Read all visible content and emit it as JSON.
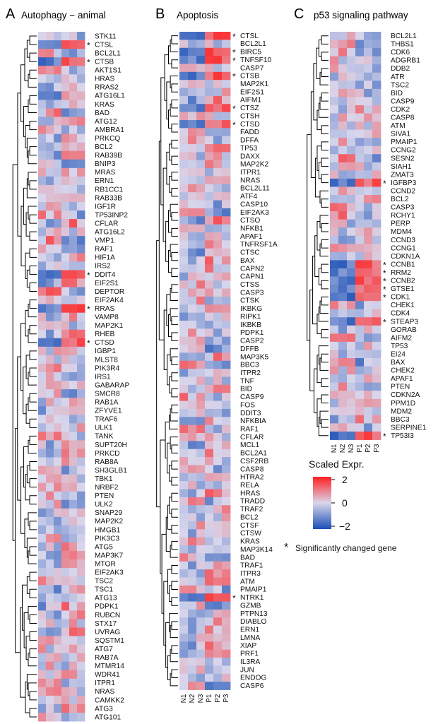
{
  "figure": {
    "legend_title": "Scaled Expr.",
    "legend_ticks": [
      "2",
      "0",
      "−2"
    ],
    "significance_note": "Significantly changed gene",
    "star": "*",
    "colors": {
      "low": "#1a4fb5",
      "mid": "#d8d6ec",
      "high": "#ff1f1f"
    }
  },
  "chart_data": [
    {
      "type": "heatmap",
      "panel": "A",
      "title": "Autophagy − animal",
      "samples": [
        "N1",
        "N2",
        "N3",
        "P1",
        "P2",
        "P3"
      ],
      "zlim": [
        -2,
        2
      ],
      "genes": [
        "STK11",
        "CTSL",
        "BCL2L1",
        "CTSB",
        "AKT1S1",
        "HRAS",
        "RRAS2",
        "ATG16L1",
        "KRAS",
        "BAD",
        "ATG12",
        "AMBRA1",
        "PRKCQ",
        "BCL2",
        "RAB39B",
        "BNIP3",
        "MRAS",
        "ERN1",
        "RB1CC1",
        "RAB33B",
        "IGF1R",
        "TP53INP2",
        "CFLAR",
        "ATG16L2",
        "VMP1",
        "RAF1",
        "HIF1A",
        "IRS2",
        "DDIT4",
        "EIF2S1",
        "DEPTOR",
        "EIF2AK4",
        "RRAS",
        "VAMP8",
        "MAP2K1",
        "RHEB",
        "CTSD",
        "IGBP1",
        "MLST8",
        "PIK3R4",
        "IRS1",
        "GABARAP",
        "SMCR8",
        "RAB1A",
        "ZFYVE1",
        "TRAF6",
        "ULK1",
        "TANK",
        "SUPT20H",
        "PRKCD",
        "RAB8A",
        "SH3GLB1",
        "TBK1",
        "NRBF2",
        "PTEN",
        "ULK2",
        "SNAP29",
        "MAP2K2",
        "HMGB1",
        "PIK3C3",
        "ATG5",
        "MAP3K7",
        "MTOR",
        "EIF2AK3",
        "TSC2",
        "TSC1",
        "ATG13",
        "PDPK1",
        "RUBCN",
        "STX17",
        "UVRAG",
        "SQSTM1",
        "ATG7",
        "RAB7A",
        "MTMR14",
        "WDR41",
        "ITPR1",
        "NRAS",
        "CAMKK2",
        "ATG3",
        "ATG101"
      ],
      "significant": [
        "CTSL",
        "CTSB",
        "DDIT4",
        "RRAS",
        "CTSD"
      ]
    },
    {
      "type": "heatmap",
      "panel": "B",
      "title": "Apoptosis",
      "samples": [
        "N1",
        "N2",
        "N3",
        "P1",
        "P2",
        "P3"
      ],
      "zlim": [
        -2,
        2
      ],
      "genes": [
        "CTSL",
        "BCL2L1",
        "BIRC5",
        "TNFSF10",
        "CASP7",
        "CTSB",
        "MAP2K1",
        "EIF2S1",
        "AIFM1",
        "CTSZ",
        "CTSH",
        "CTSD",
        "FADD",
        "DFFA",
        "TP53",
        "DAXX",
        "MAP2K2",
        "ITPR1",
        "NRAS",
        "BCL2L11",
        "ATF4",
        "CASP10",
        "EIF2AK3",
        "CTSO",
        "NFKB1",
        "APAF1",
        "TNFRSF1A",
        "CTSC",
        "BAX",
        "CAPN2",
        "CAPN1",
        "CTSS",
        "CASP3",
        "CTSK",
        "IKBKG",
        "RIPK1",
        "IKBKB",
        "PDPK1",
        "CASP2",
        "DFFB",
        "MAP3K5",
        "BBC3",
        "ITPR2",
        "TNF",
        "BID",
        "CASP9",
        "FOS",
        "DDIT3",
        "NFKBIA",
        "RAF1",
        "CFLAR",
        "MCL1",
        "BCL2A1",
        "CSF2RB",
        "CASP8",
        "HTRA2",
        "RELA",
        "HRAS",
        "TRADD",
        "TRAF2",
        "BCL2",
        "CTSF",
        "CTSW",
        "KRAS",
        "MAP3K14",
        "BAD",
        "TRAF1",
        "ITPR3",
        "ATM",
        "PMAIP1",
        "NTRK1",
        "GZMB",
        "PTPN13",
        "DIABLO",
        "ERN1",
        "LMNA",
        "XIAP",
        "PRF1",
        "IL3RA",
        "JUN",
        "ENDOG",
        "CASP6"
      ],
      "significant": [
        "CTSL",
        "BIRC5",
        "TNFSF10",
        "CTSB",
        "CTSZ",
        "CTSD",
        "NTRK1"
      ]
    },
    {
      "type": "heatmap",
      "panel": "C",
      "title": "p53 signaling pathway",
      "samples": [
        "N1",
        "N2",
        "N3",
        "P1",
        "P2",
        "P3"
      ],
      "zlim": [
        -2,
        2
      ],
      "genes": [
        "BCL2L1",
        "THBS1",
        "CDK6",
        "ADGRB1",
        "DDB2",
        "ATR",
        "TSC2",
        "BID",
        "CASP9",
        "CDK2",
        "CASP8",
        "ATM",
        "SIVA1",
        "PMAIP1",
        "CCNG2",
        "SESN2",
        "SIAH1",
        "ZMAT3",
        "IGFBP3",
        "CCND2",
        "BCL2",
        "CASP3",
        "RCHY1",
        "PERP",
        "MDM4",
        "CCND3",
        "CCNG1",
        "CDKN1A",
        "CCNB1",
        "RRM2",
        "CCNB2",
        "GTSE1",
        "CDK1",
        "CHEK1",
        "CDK4",
        "STEAP3",
        "GORAB",
        "AIFM2",
        "TP53",
        "EI24",
        "BAX",
        "CHEK2",
        "APAF1",
        "PTEN",
        "CDKN2A",
        "PPM1D",
        "MDM2",
        "BBC3",
        "SERPINE1",
        "TP53I3"
      ],
      "significant": [
        "IGFBP3",
        "CCNB1",
        "RRM2",
        "CCNB2",
        "GTSE1",
        "CDK1",
        "STEAP3",
        "TP53I3"
      ]
    }
  ]
}
